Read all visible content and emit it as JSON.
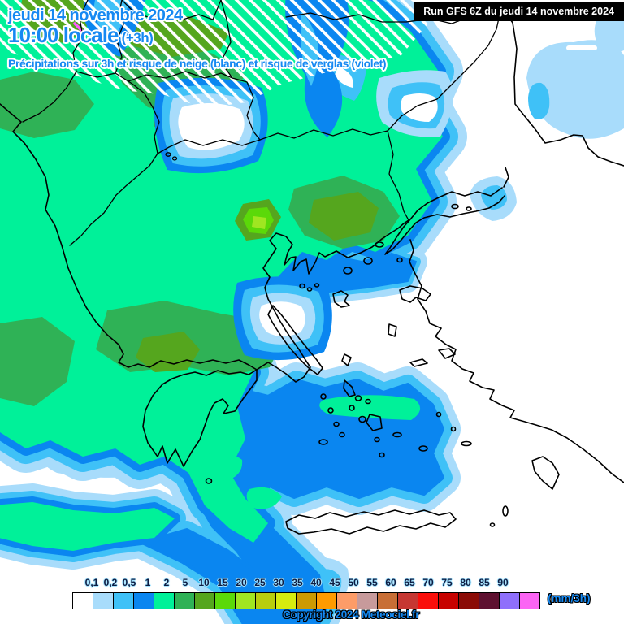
{
  "header": {
    "date_line": "jeudi 14 novembre 2024",
    "time_line": "10:00 locale",
    "time_suffix": " (+3h)",
    "subtitle": "Précipitations sur 3h et risque de neige (blanc) et risque de verglas (violet)",
    "run_info": "Run GFS 6Z du jeudi 14 novembre 2024"
  },
  "legend": {
    "unit_label": "(mm/3h)",
    "ticks": [
      "0,1",
      "0,2",
      "0,5",
      "1",
      "2",
      "5",
      "10",
      "15",
      "20",
      "25",
      "30",
      "35",
      "40",
      "45",
      "50",
      "55",
      "60",
      "65",
      "70",
      "75",
      "80",
      "85",
      "90"
    ],
    "swatch_colors": [
      "#FFFFFF",
      "#A8DCFB",
      "#3FC1F7",
      "#0A86F0",
      "#00F199",
      "#2FB256",
      "#55A61E",
      "#5BD909",
      "#A0E621",
      "#B8CE0D",
      "#D6EC0F",
      "#CC9A02",
      "#FE9B00",
      "#FD9C68",
      "#C79A9B",
      "#C86E35",
      "#C63732",
      "#FA0F0B",
      "#C70200",
      "#8B0B06",
      "#5E1030",
      "#8F6FFB",
      "#FB64F4"
    ]
  },
  "map": {
    "palette": {
      "none": "#FFFFFF",
      "l01": "#A8DCFB",
      "l02": "#3FC1F7",
      "l05": "#0A86F0",
      "l1": "#00F199",
      "l2": "#2FB256",
      "l5": "#55A61E",
      "l10": "#5BD909",
      "l15": "#A0E621",
      "snow_hatch": "#FFFFFF",
      "verglas": "#FF5BFF",
      "coastline": "#000000"
    }
  },
  "footer": {
    "copyright": "Copyright 2024 Meteociel.fr"
  }
}
